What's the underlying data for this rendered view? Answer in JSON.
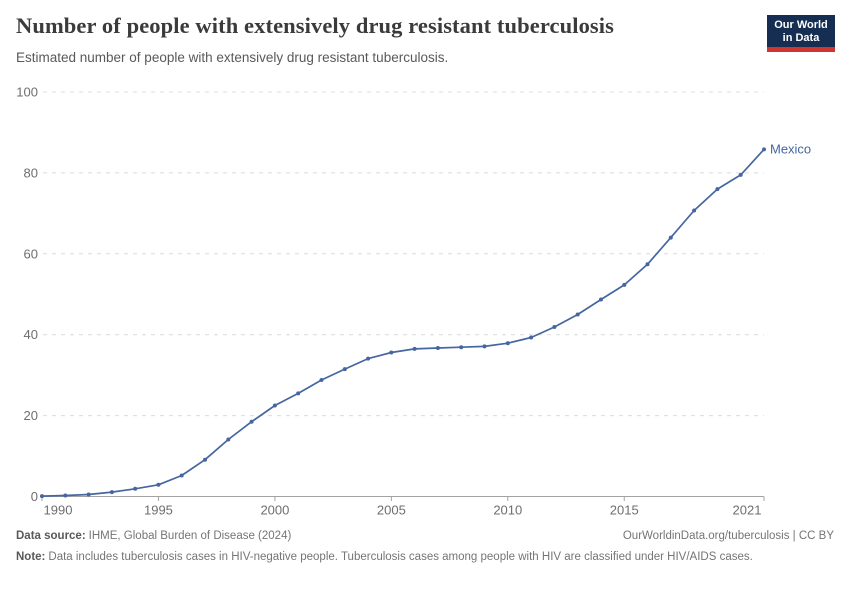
{
  "header": {
    "title": "Number of people with extensively drug resistant tuberculosis",
    "subtitle": "Estimated number of people with extensively drug resistant tuberculosis."
  },
  "logo": {
    "line1": "Our World",
    "line2": "in Data",
    "bg_color": "#152e52",
    "bar_color": "#d0352f"
  },
  "chart_data": {
    "type": "line",
    "title": "Number of people with extensively drug resistant tuberculosis",
    "x": [
      1990,
      1991,
      1992,
      1993,
      1994,
      1995,
      1996,
      1997,
      1998,
      1999,
      2000,
      2001,
      2002,
      2003,
      2004,
      2005,
      2006,
      2007,
      2008,
      2009,
      2010,
      2011,
      2012,
      2013,
      2014,
      2015,
      2016,
      2017,
      2018,
      2019,
      2020,
      2021
    ],
    "series": [
      {
        "name": "Mexico",
        "color": "#4566a0",
        "values": [
          0.1,
          0.25,
          0.5,
          1.1,
          1.9,
          2.9,
          5.2,
          9.1,
          14.1,
          18.5,
          22.5,
          25.5,
          28.8,
          31.5,
          34.1,
          35.6,
          36.5,
          36.7,
          36.9,
          37.1,
          37.9,
          39.3,
          41.9,
          45,
          48.7,
          52.3,
          57.4,
          64,
          70.7,
          76,
          79.5,
          85.8
        ]
      }
    ],
    "ylim": [
      0,
      100
    ],
    "yticks": [
      0,
      20,
      40,
      60,
      80,
      100
    ],
    "xticks": [
      1990,
      1995,
      2000,
      2005,
      2010,
      2015,
      2021
    ],
    "grid": "horizontal-dashed",
    "legend_position": "end-of-line-label",
    "xlabel": "",
    "ylabel": ""
  },
  "colors": {
    "line": "#4566a0",
    "grid": "#dcdcdc",
    "axis": "#a3a3a3",
    "tick_label": "#6e6e6e"
  },
  "footer": {
    "source_label": "Data source:",
    "source_text": "IHME, Global Burden of Disease (2024)",
    "license_text": "OurWorldinData.org/tuberculosis | CC BY",
    "note_label": "Note:",
    "note_text": "Data includes tuberculosis cases in HIV-negative people. Tuberculosis cases among people with HIV are classified under HIV/AIDS cases."
  }
}
